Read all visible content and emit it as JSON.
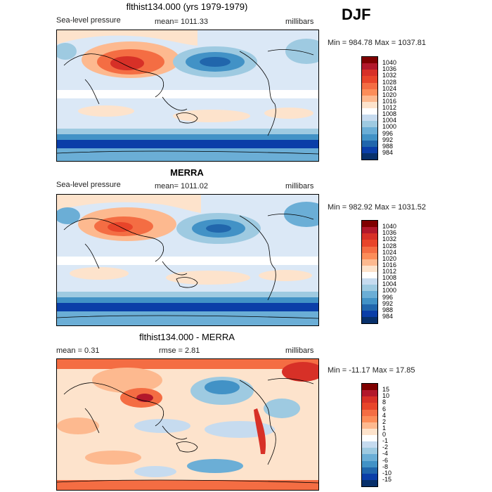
{
  "season": "DJF",
  "panels": [
    {
      "title": "flthist134.000 (yrs 1979-1979)",
      "left_label": "Sea-level pressure",
      "center_label": "mean= 1011.33",
      "right_label": "millibars",
      "minmax": "Min = 984.78 Max = 1037.81",
      "colorbar": {
        "labels": [
          "1040",
          "1036",
          "1032",
          "1028",
          "1024",
          "1020",
          "1016",
          "1012",
          "1008",
          "1004",
          "1000",
          "996",
          "992",
          "988",
          "984"
        ],
        "colors": [
          "#7f0000",
          "#b2182b",
          "#d73027",
          "#e8452a",
          "#f46d43",
          "#fc8d59",
          "#fdb98f",
          "#fde3cc",
          "#ffffff",
          "#c6dbef",
          "#9ecae1",
          "#6baed6",
          "#4292c6",
          "#2166ac",
          "#0b3ea8",
          "#08306b"
        ]
      }
    },
    {
      "title": "MERRA",
      "left_label": "Sea-level pressure",
      "center_label": "mean= 1011.02",
      "right_label": "millibars",
      "minmax": "Min = 982.92 Max = 1031.52",
      "colorbar": {
        "labels": [
          "1040",
          "1036",
          "1032",
          "1028",
          "1024",
          "1020",
          "1016",
          "1012",
          "1008",
          "1004",
          "1000",
          "996",
          "992",
          "988",
          "984"
        ],
        "colors": [
          "#7f0000",
          "#b2182b",
          "#d73027",
          "#e8452a",
          "#f46d43",
          "#fc8d59",
          "#fdb98f",
          "#fde3cc",
          "#ffffff",
          "#c6dbef",
          "#9ecae1",
          "#6baed6",
          "#4292c6",
          "#2166ac",
          "#0b3ea8",
          "#08306b"
        ]
      }
    },
    {
      "title": "flthist134.000 - MERRA",
      "left_label": "mean =    0.31",
      "center_label": "rmse =    2.81",
      "right_label": "millibars",
      "minmax": "Min = -11.17 Max =  17.85",
      "colorbar": {
        "labels": [
          "15",
          "10",
          "8",
          "6",
          "4",
          "2",
          "1",
          "0",
          "-1",
          "-2",
          "-4",
          "-6",
          "-8",
          "-10",
          "-15"
        ],
        "colors": [
          "#7f0000",
          "#b2182b",
          "#d73027",
          "#e8452a",
          "#f46d43",
          "#fc8d59",
          "#fdb98f",
          "#fde3cc",
          "#ffffff",
          "#c6dbef",
          "#9ecae1",
          "#6baed6",
          "#4292c6",
          "#2166ac",
          "#0b3ea8",
          "#08306b"
        ]
      }
    }
  ]
}
